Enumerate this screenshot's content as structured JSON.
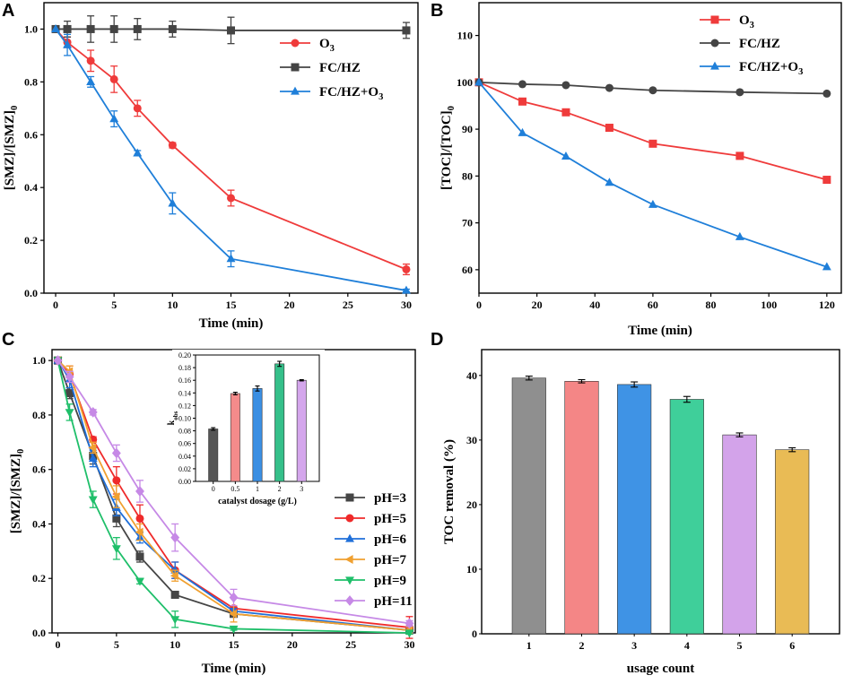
{
  "chart_data": [
    {
      "panel": "A",
      "type": "line",
      "xlabel": "Time (min)",
      "ylabel": "[SMZ]/[SMZ]",
      "ylabel_sub": "0",
      "xlim": [
        -1,
        31
      ],
      "ylim": [
        0,
        1.1
      ],
      "xticks": [
        0,
        5,
        10,
        15,
        20,
        25,
        30
      ],
      "yticks": [
        0.0,
        0.2,
        0.4,
        0.6,
        0.8,
        1.0
      ],
      "legend_position": "top-right",
      "series": [
        {
          "name": "O",
          "name_sub": "3",
          "color": "#ef3b3b",
          "marker": "circle",
          "x": [
            0,
            1,
            3,
            5,
            7,
            10,
            15,
            30
          ],
          "y": [
            1.0,
            0.95,
            0.88,
            0.81,
            0.7,
            0.56,
            0.36,
            0.09
          ],
          "err": [
            0.0,
            0.02,
            0.04,
            0.05,
            0.03,
            0.01,
            0.03,
            0.02
          ]
        },
        {
          "name": "FC/HZ",
          "name_sub": "",
          "color": "#444444",
          "marker": "square",
          "x": [
            0,
            1,
            3,
            5,
            7,
            10,
            15,
            30
          ],
          "y": [
            1.0,
            1.0,
            1.0,
            1.0,
            1.0,
            1.0,
            0.995,
            0.995
          ],
          "err": [
            0.0,
            0.03,
            0.05,
            0.05,
            0.04,
            0.03,
            0.05,
            0.03
          ]
        },
        {
          "name": "FC/HZ+O",
          "name_sub": "3",
          "color": "#1f7fd9",
          "marker": "triangle",
          "x": [
            0,
            1,
            3,
            5,
            7,
            10,
            15,
            30
          ],
          "y": [
            1.0,
            0.94,
            0.8,
            0.66,
            0.53,
            0.34,
            0.13,
            0.01
          ],
          "err": [
            0.0,
            0.04,
            0.02,
            0.03,
            0.01,
            0.04,
            0.03,
            0.005
          ]
        }
      ]
    },
    {
      "panel": "B",
      "type": "line",
      "xlabel": "Time (min)",
      "ylabel": "[TOC]/[TOC]",
      "ylabel_sub": "0",
      "xlim": [
        0,
        125
      ],
      "ylim": [
        55,
        117
      ],
      "xticks": [
        0,
        20,
        40,
        60,
        80,
        100,
        120
      ],
      "yticks": [
        60,
        70,
        80,
        90,
        100,
        110
      ],
      "legend_position": "top-right",
      "series": [
        {
          "name": "O",
          "name_sub": "3",
          "color": "#ef3b3b",
          "marker": "square",
          "x": [
            0,
            15,
            30,
            45,
            60,
            90,
            120
          ],
          "y": [
            100,
            95.9,
            93.6,
            90.3,
            86.9,
            84.3,
            79.2
          ]
        },
        {
          "name": "FC/HZ",
          "name_sub": "",
          "color": "#444444",
          "marker": "circle",
          "x": [
            0,
            15,
            30,
            45,
            60,
            90,
            120
          ],
          "y": [
            100,
            99.6,
            99.4,
            98.8,
            98.3,
            97.9,
            97.6
          ]
        },
        {
          "name": "FC/HZ+O",
          "name_sub": "3",
          "color": "#1f7fd9",
          "marker": "triangle",
          "x": [
            0,
            15,
            30,
            45,
            60,
            90,
            120
          ],
          "y": [
            100,
            89.2,
            84.2,
            78.6,
            73.9,
            67.0,
            60.6
          ]
        }
      ]
    },
    {
      "panel": "C",
      "type": "line",
      "xlabel": "Time (min)",
      "ylabel": "[SMZ]/[SMZ]",
      "ylabel_sub": "0",
      "xlim": [
        -0.5,
        30.5
      ],
      "ylim": [
        0,
        1.04
      ],
      "xticks": [
        0,
        5,
        10,
        15,
        20,
        25,
        30
      ],
      "yticks": [
        0.0,
        0.2,
        0.4,
        0.6,
        0.8,
        1.0
      ],
      "legend_position": "bottom-right",
      "series": [
        {
          "name": "pH=3",
          "color": "#454545",
          "marker": "square",
          "x": [
            0,
            1,
            3,
            5,
            7,
            10,
            15,
            30
          ],
          "y": [
            1.0,
            0.88,
            0.65,
            0.42,
            0.28,
            0.14,
            0.07,
            0.01
          ],
          "err": [
            0.0,
            0.02,
            0.03,
            0.03,
            0.02,
            0.01,
            0.01,
            0.01
          ]
        },
        {
          "name": "pH=5",
          "color": "#ef2a2a",
          "marker": "circle",
          "x": [
            0,
            1,
            3,
            5,
            7,
            10,
            15,
            30
          ],
          "y": [
            1.0,
            0.95,
            0.71,
            0.56,
            0.42,
            0.23,
            0.09,
            0.02
          ],
          "err": [
            0.0,
            0.03,
            0.01,
            0.05,
            0.05,
            0.03,
            0.01,
            0.04
          ]
        },
        {
          "name": "pH=6",
          "color": "#1f6fd9",
          "marker": "triangle",
          "x": [
            0,
            1,
            3,
            5,
            7,
            10,
            15,
            30
          ],
          "y": [
            1.0,
            0.93,
            0.64,
            0.46,
            0.35,
            0.23,
            0.08,
            0.01
          ],
          "err": [
            0.0,
            0.03,
            0.03,
            0.03,
            0.02,
            0.03,
            0.01,
            0.01
          ]
        },
        {
          "name": "pH=7",
          "color": "#f0a030",
          "marker": "tri-left",
          "x": [
            0,
            1,
            3,
            5,
            7,
            10,
            15,
            30
          ],
          "y": [
            1.0,
            0.96,
            0.68,
            0.5,
            0.37,
            0.21,
            0.07,
            0.01
          ],
          "err": [
            0.0,
            0.02,
            0.02,
            0.04,
            0.03,
            0.02,
            0.03,
            0.01
          ]
        },
        {
          "name": "pH=9",
          "color": "#1fbf6a",
          "marker": "tri-down",
          "x": [
            0,
            1,
            3,
            5,
            7,
            10,
            15,
            30
          ],
          "y": [
            1.0,
            0.81,
            0.49,
            0.31,
            0.19,
            0.05,
            0.015,
            0.0
          ],
          "err": [
            0.0,
            0.03,
            0.03,
            0.04,
            0.01,
            0.03,
            0.005,
            0.005
          ]
        },
        {
          "name": "pH=11",
          "color": "#c689e6",
          "marker": "diamond",
          "x": [
            0,
            1,
            3,
            5,
            7,
            10,
            15,
            30
          ],
          "y": [
            1.0,
            0.94,
            0.81,
            0.66,
            0.52,
            0.35,
            0.13,
            0.035
          ],
          "err": [
            0.0,
            0.02,
            0.01,
            0.03,
            0.04,
            0.05,
            0.03,
            0.01
          ]
        }
      ],
      "inset": {
        "type": "bar",
        "categories": [
          "0",
          "0.5",
          "1",
          "2",
          "3"
        ],
        "values": [
          0.083,
          0.139,
          0.147,
          0.186,
          0.16
        ],
        "err": [
          0.002,
          0.002,
          0.004,
          0.004,
          0.001
        ],
        "colors": [
          "#555555",
          "#f48b8b",
          "#3b8fe3",
          "#35c08a",
          "#d4a6ec"
        ],
        "xlabel": "catalyst dosage (g/L)",
        "ylabel": "k",
        "ylabel_sub": "obs",
        "ylim": [
          0,
          0.2
        ],
        "yticks": [
          "0.00",
          "0.02",
          "0.04",
          "0.06",
          "0.08",
          "0.10",
          "0.12",
          "0.14",
          "0.16",
          "0.18",
          "0.20"
        ]
      }
    },
    {
      "panel": "D",
      "type": "bar",
      "xlabel": "usage count",
      "ylabel": "TOC removal (%)",
      "categories": [
        "1",
        "2",
        "3",
        "4",
        "5",
        "6"
      ],
      "values": [
        39.6,
        39.1,
        38.6,
        36.3,
        30.8,
        28.5
      ],
      "err": [
        0.3,
        0.25,
        0.4,
        0.45,
        0.3,
        0.3
      ],
      "colors": [
        "#8f8f8f",
        "#f48686",
        "#3f93e5",
        "#3fcf9a",
        "#d3a3ea",
        "#e9bb55"
      ],
      "ylim": [
        0,
        44
      ],
      "yticks": [
        0,
        10,
        20,
        30,
        40
      ]
    }
  ]
}
